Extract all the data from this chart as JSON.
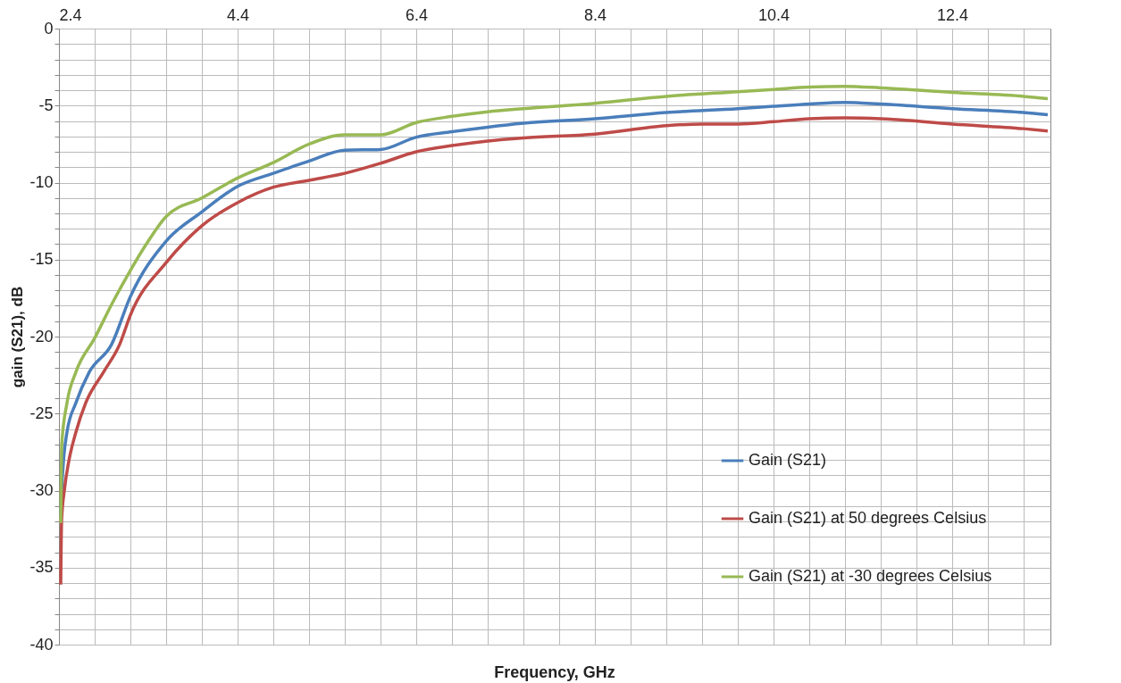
{
  "chart_data": {
    "type": "line",
    "xlabel": "Frequency, GHz",
    "ylabel": "gain (S21), dB",
    "xlim": [
      2.4,
      13.5
    ],
    "ylim": [
      -40,
      0
    ],
    "xticks": [
      2.4,
      {
        "value": 2.8,
        "label": null
      },
      {
        "value": 3.2,
        "label": null
      },
      {
        "value": 3.6,
        "label": null
      },
      {
        "value": 4.0,
        "label": null
      },
      4.4,
      {
        "value": 4.8,
        "label": null
      },
      {
        "value": 5.2,
        "label": null
      },
      {
        "value": 5.6,
        "label": null
      },
      {
        "value": 6.0,
        "label": null
      },
      6.4,
      {
        "value": 6.8,
        "label": null
      },
      {
        "value": 7.2,
        "label": null
      },
      {
        "value": 7.6,
        "label": null
      },
      {
        "value": 8.0,
        "label": null
      },
      8.4,
      {
        "value": 8.8,
        "label": null
      },
      {
        "value": 9.2,
        "label": null
      },
      {
        "value": 9.6,
        "label": null
      },
      {
        "value": 10.0,
        "label": null
      },
      10.4,
      {
        "value": 10.8,
        "label": null
      },
      {
        "value": 11.2,
        "label": null
      },
      {
        "value": 11.6,
        "label": null
      },
      {
        "value": 12.0,
        "label": null
      },
      12.4,
      {
        "value": 12.8,
        "label": null
      },
      {
        "value": 13.2,
        "label": null
      }
    ],
    "yticks": [
      0,
      {
        "value": -1,
        "label": null
      },
      {
        "value": -2,
        "label": null
      },
      {
        "value": -3,
        "label": null
      },
      {
        "value": -4,
        "label": null
      },
      -5,
      {
        "value": -6,
        "label": null
      },
      {
        "value": -7,
        "label": null
      },
      {
        "value": -8,
        "label": null
      },
      {
        "value": -9,
        "label": null
      },
      -10,
      {
        "value": -11,
        "label": null
      },
      {
        "value": -12,
        "label": null
      },
      {
        "value": -13,
        "label": null
      },
      {
        "value": -14,
        "label": null
      },
      -15,
      {
        "value": -16,
        "label": null
      },
      {
        "value": -17,
        "label": null
      },
      {
        "value": -18,
        "label": null
      },
      {
        "value": -19,
        "label": null
      },
      -20,
      {
        "value": -21,
        "label": null
      },
      {
        "value": -22,
        "label": null
      },
      {
        "value": -23,
        "label": null
      },
      {
        "value": -24,
        "label": null
      },
      -25,
      {
        "value": -26,
        "label": null
      },
      {
        "value": -27,
        "label": null
      },
      {
        "value": -28,
        "label": null
      },
      {
        "value": -29,
        "label": null
      },
      -30,
      {
        "value": -31,
        "label": null
      },
      {
        "value": -32,
        "label": null
      },
      {
        "value": -33,
        "label": null
      },
      {
        "value": -34,
        "label": null
      },
      -35,
      {
        "value": -36,
        "label": null
      },
      {
        "value": -37,
        "label": null
      },
      {
        "value": -38,
        "label": null
      },
      {
        "value": -39,
        "label": null
      },
      -40
    ],
    "grid": true,
    "legend": "right",
    "marker": "none",
    "line_style": "solid",
    "series": [
      {
        "name": "Gain (S21)",
        "color": "#4a7ebb",
        "x": [
          2.42,
          2.43,
          2.45,
          2.49,
          2.59,
          2.74,
          2.99,
          3.2,
          3.6,
          4.0,
          4.4,
          4.8,
          5.2,
          5.6,
          6.0,
          6.4,
          6.8,
          7.2,
          7.6,
          8.4,
          9.2,
          10.0,
          10.4,
          10.8,
          11.2,
          11.6,
          12.4,
          13.2,
          13.47
        ],
        "values": [
          -31.5,
          -30,
          -28.1,
          -26.2,
          -24.3,
          -22.3,
          -20.5,
          -17.4,
          -13.8,
          -11.9,
          -10.25,
          -9.4,
          -8.6,
          -7.9,
          -7.85,
          -7.05,
          -6.7,
          -6.4,
          -6.15,
          -5.85,
          -5.45,
          -5.2,
          -5.05,
          -4.9,
          -4.8,
          -4.9,
          -5.2,
          -5.45,
          -5.6
        ]
      },
      {
        "name": "Gain (S21) at 50 degrees Celsius",
        "color": "#be4b48",
        "x": [
          2.42,
          2.43,
          2.46,
          2.51,
          2.59,
          2.7,
          2.9,
          3.08,
          3.2,
          3.6,
          4.0,
          4.4,
          4.8,
          5.2,
          5.6,
          6.0,
          6.4,
          6.8,
          7.2,
          7.6,
          8.4,
          9.2,
          9.6,
          10.0,
          10.4,
          10.8,
          11.2,
          11.6,
          12.4,
          13.2,
          13.47
        ],
        "values": [
          -36.1,
          -31.9,
          -30,
          -28.1,
          -26.2,
          -24.3,
          -22.3,
          -20.5,
          -18.6,
          -15.2,
          -12.8,
          -11.3,
          -10.3,
          -9.85,
          -9.4,
          -8.75,
          -8,
          -7.6,
          -7.3,
          -7.1,
          -6.85,
          -6.3,
          -6.2,
          -6.2,
          -6.05,
          -5.85,
          -5.8,
          -5.85,
          -6.2,
          -6.5,
          -6.65
        ]
      },
      {
        "name": "Gain (S21) at -30 degrees Celsius",
        "color": "#98b954",
        "x": [
          2.42,
          2.43,
          2.49,
          2.59,
          2.8,
          3.0,
          3.2,
          3.4,
          3.6,
          4.0,
          4.4,
          4.8,
          5.2,
          5.6,
          6.0,
          6.4,
          6.8,
          7.2,
          7.6,
          8.4,
          9.2,
          10.0,
          10.4,
          10.8,
          11.2,
          11.6,
          12.4,
          13.2,
          13.47
        ],
        "values": [
          -32.1,
          -27.1,
          -24.3,
          -22.3,
          -20.1,
          -17.8,
          -15.7,
          -13.8,
          -12.2,
          -11,
          -9.7,
          -8.7,
          -7.5,
          -6.9,
          -6.9,
          -6.1,
          -5.7,
          -5.4,
          -5.2,
          -4.85,
          -4.4,
          -4.1,
          -3.95,
          -3.8,
          -3.75,
          -3.85,
          -4.15,
          -4.4,
          -4.55
        ]
      }
    ]
  }
}
